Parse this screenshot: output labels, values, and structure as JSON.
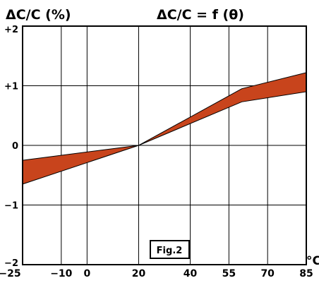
{
  "chart_data": {
    "type": "area",
    "title": "ΔC/C = f (θ)",
    "ylabel": "ΔC/C (%)",
    "xlabel": "°C",
    "figure_label": "Fig.2",
    "x_ticks": [
      -25,
      -10,
      0,
      20,
      40,
      55,
      70,
      85
    ],
    "y_ticks": [
      2,
      1,
      0,
      -1,
      -2
    ],
    "y_tick_labels": [
      "+2",
      "+1",
      "0",
      "−1",
      "−2"
    ],
    "xlim": [
      -25,
      85
    ],
    "ylim": [
      -2,
      2
    ],
    "grid": true,
    "band_color": "#c8441c",
    "series": [
      {
        "x": [
          -25,
          20,
          60,
          85
        ],
        "upper": [
          -0.25,
          0.0,
          0.95,
          1.22
        ],
        "lower": [
          -0.65,
          0.0,
          0.73,
          0.9
        ]
      }
    ]
  }
}
